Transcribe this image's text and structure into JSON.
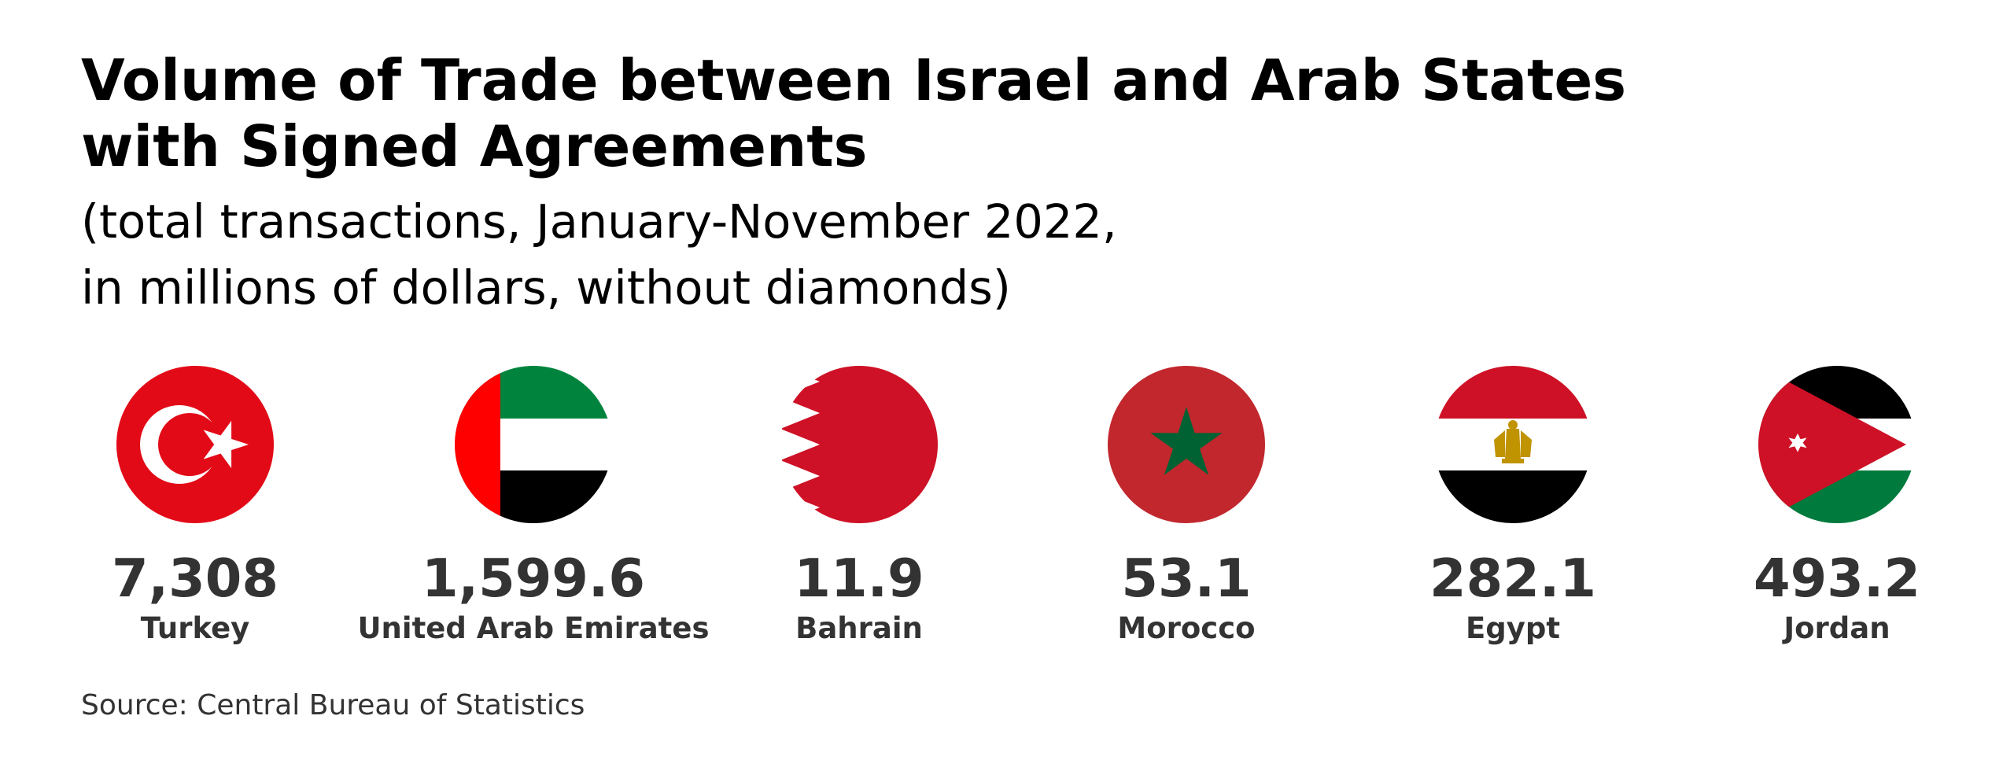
{
  "title_lines": [
    "Volume of Trade between Israel and Arab States",
    "with Signed Agreements"
  ],
  "subtitle_lines": [
    "(total transactions, January-November 2022,",
    "in millions of dollars, without diamonds)"
  ],
  "source": "Source: Central Bureau of Statistics",
  "chart_data": {
    "type": "table",
    "title": "Volume of Trade between Israel and Arab States with Signed Agreements",
    "subtitle": "(total transactions, January-November 2022, in millions of dollars, without diamonds)",
    "unit": "millions of dollars",
    "categories": [
      "Turkey",
      "United Arab Emirates",
      "Bahrain",
      "Morocco",
      "Egypt",
      "Jordan"
    ],
    "values": [
      7308,
      1599.6,
      11.9,
      53.1,
      282.1,
      493.2
    ],
    "value_labels": [
      "7,308",
      "1,599.6",
      "11.9",
      "53.1",
      "282.1",
      "493.2"
    ],
    "flag_icons": [
      "turkey-flag-icon",
      "uae-flag-icon",
      "bahrain-flag-icon",
      "morocco-flag-icon",
      "egypt-flag-icon",
      "jordan-flag-icon"
    ]
  },
  "colors": {
    "turkey_red": "#E30A17",
    "uae_green": "#00843D",
    "uae_red": "#FF0000",
    "bahrain_red": "#CE1126",
    "morocco_red": "#C1272D",
    "morocco_green": "#006233",
    "egypt_red": "#CE1126",
    "egypt_gold": "#C09300",
    "jordan_red": "#CE1126",
    "jordan_green": "#007A3D",
    "text_dark": "#333333"
  }
}
